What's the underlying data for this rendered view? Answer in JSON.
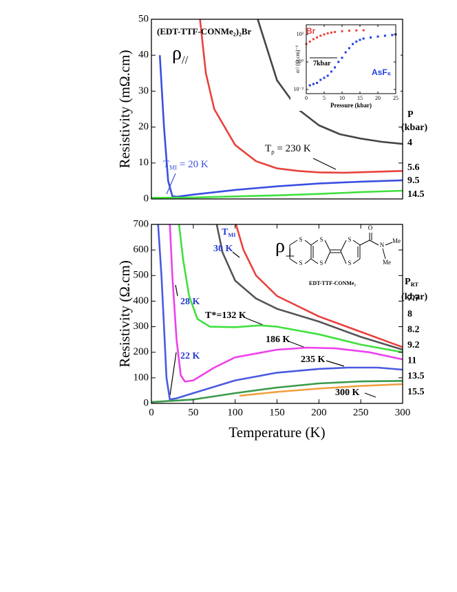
{
  "chart_data": [
    {
      "type": "line",
      "title": "(EDT-TTF-CONMe₂)₂Br",
      "ylabel": "Resistivity (mΩ.cm)",
      "xlim": [
        0,
        300
      ],
      "ylim": [
        0,
        50
      ],
      "yticks": [
        0,
        10,
        20,
        30,
        40,
        50
      ],
      "series": [
        {
          "name": "4",
          "color": "#444444",
          "x": [
            127,
            150,
            175,
            200,
            225,
            250,
            275,
            300
          ],
          "values": [
            50,
            33,
            25,
            20.5,
            18,
            16.8,
            15.9,
            15.3
          ]
        },
        {
          "name": "5.6",
          "color": "#e8413c",
          "x": [
            58,
            65,
            75,
            100,
            125,
            150,
            175,
            200,
            230,
            260,
            300
          ],
          "values": [
            50,
            35,
            25,
            15,
            10.5,
            8.5,
            7.8,
            7.4,
            7.3,
            7.5,
            7.8
          ]
        },
        {
          "name": "9.5",
          "color": "#3a4fe0",
          "x": [
            10,
            15,
            20,
            25,
            30,
            50,
            100,
            150,
            200,
            250,
            300
          ],
          "values": [
            40,
            20,
            5,
            0.8,
            0.6,
            1.2,
            2.5,
            3.5,
            4.3,
            4.8,
            5.2
          ]
        },
        {
          "name": "14.5",
          "color": "#3fe03f",
          "x": [
            0,
            50,
            100,
            150,
            200,
            250,
            300
          ],
          "values": [
            0.3,
            0.4,
            0.7,
            1.0,
            1.4,
            1.9,
            2.3
          ]
        }
      ],
      "annotations": [
        {
          "main": "ρ",
          "sub": "//"
        },
        {
          "main": "T",
          "sub": "MI",
          "rest": " = 20 K",
          "color": "#3a4fe0"
        },
        {
          "main": "T",
          "sub": "ρ",
          "rest": " = 230 K",
          "color": "#000000"
        },
        {
          "main": "P"
        },
        {
          "main": "(kbar)"
        }
      ]
    },
    {
      "type": "scatter",
      "xlabel": "Pressure (kbar)",
      "ylabel": "σ// (Ω.cm)⁻¹",
      "log_y": true,
      "xlim": [
        0,
        25
      ],
      "xticks": [
        0,
        5,
        10,
        15,
        20,
        25
      ],
      "ylim": [
        0.005,
        500
      ],
      "yticks": [
        {
          "value": 0.01,
          "label": "10⁻²"
        },
        {
          "value": 1,
          "label": "10⁰"
        },
        {
          "value": 100,
          "label": "10²"
        }
      ],
      "series": [
        {
          "name": "Br",
          "color": "#e8413c",
          "x": [
            0,
            1,
            2,
            3,
            4,
            5,
            6,
            7,
            8,
            10,
            12,
            14,
            16
          ],
          "values": [
            20,
            30,
            45,
            60,
            80,
            100,
            120,
            135,
            150,
            170,
            185,
            195,
            200
          ]
        },
        {
          "name": "AsF₆",
          "color": "#1f3fe0",
          "x": [
            1,
            2,
            3,
            4,
            5,
            6,
            7,
            8,
            9,
            10,
            11,
            12,
            13,
            14,
            15,
            16,
            18,
            20,
            22,
            24,
            25
          ],
          "values": [
            0.02,
            0.025,
            0.03,
            0.05,
            0.07,
            0.1,
            0.2,
            0.4,
            1,
            2,
            5,
            10,
            20,
            30,
            40,
            50,
            60,
            70,
            80,
            90,
            100
          ]
        }
      ],
      "annotations": [
        {
          "main": "7kbar"
        }
      ]
    },
    {
      "type": "line",
      "ylabel": "Resistivity (Ω.cm)",
      "xlabel": "Temperature (K)",
      "xlim": [
        0,
        300
      ],
      "xticks": [
        0,
        50,
        100,
        150,
        200,
        250,
        300
      ],
      "ylim": [
        0,
        700
      ],
      "yticks": [
        0,
        100,
        200,
        300,
        400,
        500,
        600,
        700
      ],
      "series": [
        {
          "name": "7.7",
          "color": "#e8413c",
          "x": [
            101,
            110,
            125,
            150,
            200,
            250,
            300
          ],
          "values": [
            700,
            600,
            500,
            420,
            340,
            280,
            220
          ]
        },
        {
          "name": "8",
          "color": "#555555",
          "x": [
            78,
            85,
            100,
            125,
            150,
            200,
            250,
            300
          ],
          "values": [
            700,
            590,
            480,
            410,
            370,
            320,
            260,
            210
          ]
        },
        {
          "name": "8.2",
          "color": "#3fe03f",
          "x": [
            33,
            38,
            45,
            55,
            70,
            100,
            130,
            150,
            200,
            250,
            300
          ],
          "values": [
            700,
            560,
            420,
            330,
            300,
            298,
            305,
            300,
            270,
            230,
            200
          ]
        },
        {
          "name": "9.2",
          "color": "#ee40ee",
          "x": [
            22,
            25,
            30,
            35,
            40,
            50,
            75,
            100,
            150,
            186,
            220,
            260,
            300
          ],
          "values": [
            700,
            500,
            250,
            110,
            85,
            90,
            140,
            180,
            210,
            218,
            215,
            200,
            172
          ]
        },
        {
          "name": "11",
          "color": "#4a5ae0",
          "x": [
            8,
            12,
            15,
            18,
            22,
            30,
            50,
            100,
            150,
            200,
            235,
            270,
            300
          ],
          "values": [
            700,
            500,
            300,
            100,
            15,
            20,
            40,
            90,
            120,
            135,
            140,
            140,
            132
          ]
        },
        {
          "name": "13.5",
          "color": "#3a9a4a",
          "x": [
            0,
            50,
            100,
            150,
            200,
            250,
            300
          ],
          "values": [
            5,
            15,
            40,
            62,
            78,
            86,
            88
          ]
        },
        {
          "name": "15.5",
          "color": "#f0a040",
          "x": [
            105,
            150,
            200,
            250,
            300
          ],
          "values": [
            30,
            45,
            58,
            68,
            75
          ]
        }
      ],
      "annotations": [
        {
          "main": "ρ",
          "sub": "⊥"
        },
        {
          "main": "T",
          "sub": "MI",
          "color": "#2a3ad0"
        },
        {
          "main": "30 K",
          "color": "#2a3ad0"
        },
        {
          "main": "28 K",
          "color": "#2a3ad0"
        },
        {
          "main": "22 K",
          "color": "#2a3ad0"
        },
        {
          "main": "T*=132 K"
        },
        {
          "main": "186 K"
        },
        {
          "main": "235 K"
        },
        {
          "main": "300 K"
        },
        {
          "main": "P",
          "sub": "RT"
        },
        {
          "main": "(kbar)"
        }
      ],
      "molecule": {
        "label": "EDT-TTF-CONMe₂",
        "atoms": [
          "S",
          "S",
          "S",
          "S",
          "S",
          "S",
          "O",
          "N",
          "Me",
          "Me"
        ]
      }
    }
  ]
}
